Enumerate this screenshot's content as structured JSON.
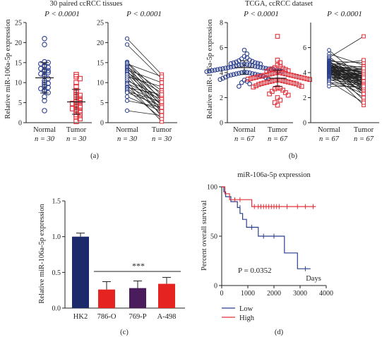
{
  "figure": {
    "panel_a": {
      "title": "30 paired ccRCC tissues",
      "ylabel": "Relative miR-106a-5p expression",
      "p_value": "P < 0.0001",
      "caption": "(a)",
      "groups": [
        {
          "name": "Normal",
          "n": "n = 30"
        },
        {
          "name": "Tumor",
          "n": "n = 30"
        }
      ]
    },
    "panel_b": {
      "title": "TCGA, ccRCC dataset",
      "ylabel": "Relative miR-106a-5p expression",
      "p_value": "P < 0.0001",
      "caption": "(b)",
      "groups": [
        {
          "name": "Normal",
          "n": "n = 67"
        },
        {
          "name": "Tumor",
          "n": "n = 67"
        }
      ]
    },
    "panel_c": {
      "ylabel": "Relative miR-106a-5p expression",
      "significance": "***",
      "caption": "(c)"
    },
    "panel_d": {
      "title": "miR-106a-5p expression",
      "ylabel": "Percent overall survival",
      "xlabel": "Days",
      "p_value": "P = 0.0352",
      "caption": "(d)",
      "legend": [
        {
          "label": "Low",
          "color": "#2b3f8f"
        },
        {
          "label": "High",
          "color": "#e0303a"
        }
      ]
    }
  },
  "chart_data": [
    {
      "type": "scatter",
      "panel": "a-dot",
      "ylim": [
        0,
        25
      ],
      "yticks": [
        0,
        5,
        10,
        15,
        20,
        25
      ],
      "categories": [
        "Normal",
        "Tumor"
      ],
      "colors": {
        "Normal": "#2b3f8f",
        "Tumor": "#e0303a"
      },
      "series": [
        {
          "name": "Normal",
          "mean": 11.2,
          "sd": 3.8,
          "values": [
            21.0,
            19.5,
            15.2,
            15.0,
            14.7,
            14.3,
            14.0,
            13.8,
            13.5,
            13.2,
            13.0,
            12.8,
            12.5,
            12.2,
            12.0,
            11.5,
            11.0,
            10.5,
            10.0,
            9.8,
            9.5,
            9.0,
            8.8,
            8.5,
            8.2,
            7.8,
            7.5,
            6.5,
            5.5,
            3.0
          ]
        },
        {
          "name": "Tumor",
          "mean": 5.2,
          "sd": 3.1,
          "values": [
            12.0,
            11.5,
            11.0,
            10.0,
            9.0,
            8.0,
            7.5,
            7.0,
            6.8,
            6.5,
            6.0,
            5.8,
            5.5,
            5.2,
            5.0,
            4.8,
            4.5,
            4.2,
            4.0,
            3.8,
            3.5,
            3.2,
            3.0,
            2.8,
            2.5,
            2.0,
            1.8,
            1.5,
            1.0,
            0.3
          ]
        }
      ]
    },
    {
      "type": "line",
      "panel": "a-paired",
      "ylim": [
        0,
        25
      ],
      "yticks": [
        0,
        5,
        10,
        15,
        20,
        25
      ],
      "categories": [
        "Normal",
        "Tumor"
      ],
      "pairs": [
        [
          21.0,
          12.0
        ],
        [
          19.5,
          11.0
        ],
        [
          15.2,
          6.8
        ],
        [
          15.0,
          5.5
        ],
        [
          14.7,
          11.5
        ],
        [
          14.3,
          4.0
        ],
        [
          14.0,
          8.0
        ],
        [
          13.8,
          3.0
        ],
        [
          13.5,
          6.0
        ],
        [
          13.2,
          10.0
        ],
        [
          13.0,
          2.5
        ],
        [
          12.8,
          5.0
        ],
        [
          12.5,
          7.5
        ],
        [
          12.2,
          4.5
        ],
        [
          12.0,
          1.5
        ],
        [
          11.5,
          9.0
        ],
        [
          11.0,
          3.5
        ],
        [
          10.5,
          6.5
        ],
        [
          10.0,
          2.0
        ],
        [
          9.8,
          5.8
        ],
        [
          9.5,
          0.3
        ],
        [
          9.0,
          4.8
        ],
        [
          8.8,
          7.0
        ],
        [
          8.5,
          3.2
        ],
        [
          8.2,
          1.0
        ],
        [
          7.8,
          5.2
        ],
        [
          7.5,
          4.2
        ],
        [
          6.5,
          2.8
        ],
        [
          5.5,
          3.8
        ],
        [
          3.0,
          1.8
        ]
      ]
    },
    {
      "type": "scatter",
      "panel": "b-dot",
      "ylim": [
        0,
        8
      ],
      "yticks": [
        0,
        2,
        4,
        6,
        8
      ],
      "categories": [
        "Normal",
        "Tumor"
      ],
      "colors": {
        "Normal": "#2b3f8f",
        "Tumor": "#e0303a"
      },
      "series": [
        {
          "name": "Normal",
          "mean": 4.4,
          "sd": 0.55,
          "values": [
            5.8,
            5.5,
            5.3,
            5.2,
            5.1,
            5.0,
            4.95,
            4.9,
            4.85,
            4.8,
            4.78,
            4.75,
            4.72,
            4.7,
            4.68,
            4.65,
            4.62,
            4.6,
            4.58,
            4.55,
            4.52,
            4.5,
            4.48,
            4.46,
            4.44,
            4.42,
            4.4,
            4.38,
            4.36,
            4.34,
            4.32,
            4.3,
            4.28,
            4.26,
            4.24,
            4.22,
            4.2,
            4.18,
            4.16,
            4.14,
            4.12,
            4.1,
            4.08,
            4.05,
            4.02,
            4.0,
            3.98,
            3.95,
            3.92,
            3.9,
            3.88,
            3.85,
            3.82,
            3.8,
            3.78,
            3.75,
            3.7,
            3.65,
            3.6,
            3.55,
            3.5,
            3.45,
            3.4,
            3.3,
            3.2,
            3.1,
            2.9
          ]
        },
        {
          "name": "Tumor",
          "mean": 3.55,
          "sd": 0.65,
          "values": [
            6.9,
            5.0,
            4.8,
            4.6,
            4.5,
            4.4,
            4.35,
            4.3,
            4.25,
            4.2,
            4.15,
            4.1,
            4.05,
            4.0,
            3.98,
            3.95,
            3.92,
            3.9,
            3.88,
            3.85,
            3.82,
            3.8,
            3.78,
            3.75,
            3.72,
            3.7,
            3.68,
            3.65,
            3.62,
            3.6,
            3.58,
            3.55,
            3.52,
            3.5,
            3.48,
            3.45,
            3.42,
            3.4,
            3.38,
            3.35,
            3.32,
            3.3,
            3.28,
            3.25,
            3.22,
            3.2,
            3.18,
            3.15,
            3.12,
            3.1,
            3.05,
            3.0,
            2.95,
            2.9,
            2.85,
            2.8,
            2.75,
            2.7,
            2.6,
            2.5,
            2.4,
            2.3,
            2.2,
            2.0,
            1.8,
            1.6,
            1.4
          ]
        }
      ]
    },
    {
      "type": "line",
      "panel": "b-paired",
      "ylim": [
        0,
        8
      ],
      "yticks": [
        0,
        2,
        4,
        6
      ],
      "categories": [
        "Normal",
        "Tumor"
      ],
      "pairs": [
        [
          5.8,
          3.4
        ],
        [
          5.5,
          4.6
        ],
        [
          5.3,
          3.0
        ],
        [
          5.2,
          6.9
        ],
        [
          5.1,
          3.8
        ],
        [
          5.0,
          4.2
        ],
        [
          4.95,
          2.9
        ],
        [
          4.9,
          4.8
        ],
        [
          4.85,
          3.5
        ],
        [
          4.8,
          2.2
        ],
        [
          4.78,
          3.9
        ],
        [
          4.75,
          4.4
        ],
        [
          4.72,
          3.1
        ],
        [
          4.7,
          3.6
        ],
        [
          4.68,
          2.6
        ],
        [
          4.65,
          4.0
        ],
        [
          4.62,
          3.3
        ],
        [
          4.6,
          5.0
        ],
        [
          4.58,
          3.7
        ],
        [
          4.55,
          2.8
        ],
        [
          4.52,
          4.1
        ],
        [
          4.5,
          3.2
        ],
        [
          4.48,
          3.95
        ],
        [
          4.46,
          1.8
        ],
        [
          4.44,
          3.55
        ],
        [
          4.42,
          4.3
        ],
        [
          4.4,
          3.45
        ],
        [
          4.38,
          2.4
        ],
        [
          4.36,
          3.85
        ],
        [
          4.34,
          4.5
        ],
        [
          4.32,
          3.25
        ],
        [
          4.3,
          3.65
        ],
        [
          4.28,
          2.7
        ],
        [
          4.26,
          4.05
        ],
        [
          4.24,
          3.15
        ],
        [
          4.22,
          3.75
        ],
        [
          4.2,
          4.25
        ],
        [
          4.18,
          2.95
        ],
        [
          4.16,
          3.5
        ],
        [
          4.14,
          1.4
        ],
        [
          4.12,
          3.9
        ],
        [
          4.1,
          3.35
        ],
        [
          4.08,
          4.15
        ],
        [
          4.05,
          3.05
        ],
        [
          4.02,
          3.7
        ],
        [
          4.0,
          2.5
        ],
        [
          3.98,
          3.6
        ],
        [
          3.95,
          4.35
        ],
        [
          3.92,
          3.4
        ],
        [
          3.9,
          2.85
        ],
        [
          3.88,
          3.8
        ],
        [
          3.85,
          3.2
        ],
        [
          3.82,
          2.0
        ],
        [
          3.8,
          3.55
        ],
        [
          3.78,
          3.9
        ],
        [
          3.75,
          3.0
        ],
        [
          3.7,
          3.45
        ],
        [
          3.65,
          2.6
        ],
        [
          3.6,
          3.3
        ],
        [
          3.55,
          3.75
        ],
        [
          3.5,
          2.3
        ],
        [
          3.45,
          3.1
        ],
        [
          3.4,
          3.6
        ],
        [
          3.3,
          1.6
        ],
        [
          3.2,
          3.0
        ],
        [
          3.1,
          2.75
        ],
        [
          2.9,
          2.9
        ]
      ]
    },
    {
      "type": "bar",
      "panel": "c",
      "categories": [
        "HK2",
        "786-O",
        "769-P",
        "A-498"
      ],
      "values": [
        1.0,
        0.26,
        0.28,
        0.34
      ],
      "errors": [
        0.05,
        0.11,
        0.1,
        0.09
      ],
      "colors": [
        "#1c2a6b",
        "#e52421",
        "#4a1c5c",
        "#e52421"
      ],
      "ylim": [
        0,
        1.5
      ],
      "yticks": [
        "0.0",
        "0.5",
        "1.0",
        "1.5"
      ]
    },
    {
      "type": "line",
      "panel": "d",
      "xlabel": "Days",
      "ylabel": "Percent overall survival",
      "xlim": [
        0,
        4000
      ],
      "ylim": [
        0,
        100
      ],
      "xticks": [
        0,
        1000,
        2000,
        3000,
        4000
      ],
      "yticks": [
        0,
        50,
        100
      ],
      "series": [
        {
          "name": "Low",
          "color": "#2b3f8f",
          "steps": [
            [
              0,
              100
            ],
            [
              80,
              95
            ],
            [
              150,
              90
            ],
            [
              350,
              85
            ],
            [
              600,
              79
            ],
            [
              700,
              73
            ],
            [
              800,
              67
            ],
            [
              950,
              59
            ],
            [
              1400,
              50
            ],
            [
              2400,
              33
            ],
            [
              2900,
              17
            ],
            [
              3400,
              17
            ]
          ],
          "censors": [
            [
              700,
              79
            ],
            [
              1150,
              59
            ],
            [
              1600,
              50
            ],
            [
              2000,
              50
            ],
            [
              3200,
              17
            ]
          ]
        },
        {
          "name": "High",
          "color": "#e0303a",
          "steps": [
            [
              0,
              100
            ],
            [
              120,
              93
            ],
            [
              300,
              87
            ],
            [
              1150,
              80
            ],
            [
              3600,
              80
            ]
          ],
          "censors": [
            [
              500,
              87
            ],
            [
              700,
              87
            ],
            [
              1250,
              80
            ],
            [
              1400,
              80
            ],
            [
              1500,
              80
            ],
            [
              1600,
              80
            ],
            [
              1700,
              80
            ],
            [
              1800,
              80
            ],
            [
              1900,
              80
            ],
            [
              2000,
              80
            ],
            [
              2100,
              80
            ],
            [
              2200,
              80
            ],
            [
              2500,
              80
            ],
            [
              2900,
              80
            ],
            [
              3200,
              80
            ],
            [
              3500,
              80
            ]
          ]
        }
      ]
    }
  ]
}
